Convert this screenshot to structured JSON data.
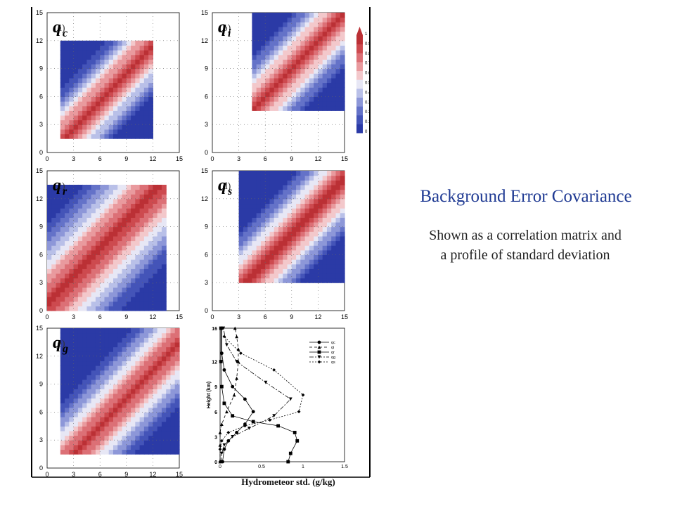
{
  "slide": {
    "title": "Background Error Covariance",
    "subtitle_line1": "Shown as a correlation matrix and",
    "subtitle_line2": "a profile of standard deviation",
    "std_axis_label": "Hydrometeor std. (g/kg)"
  },
  "panels": [
    {
      "var": "q",
      "sub": "c",
      "tag": "(a)"
    },
    {
      "var": "q",
      "sub": "i",
      "tag": "(b)"
    },
    {
      "var": "q",
      "sub": "r",
      "tag": "(c)"
    },
    {
      "var": "q",
      "sub": "s",
      "tag": "(d)"
    },
    {
      "var": "q",
      "sub": "g",
      "tag": "(e)"
    }
  ],
  "colorbar": {
    "ticks": [
      "0",
      "0.1",
      "0.2",
      "0.3",
      "0.4",
      "0.5",
      "0.6",
      "0.7",
      "0.8",
      "0.9",
      "1"
    ],
    "colors": [
      "#2b3aa6",
      "#4454b8",
      "#6472c8",
      "#8d97d8",
      "#b9c0e8",
      "#e7e7f5",
      "#f3c8cb",
      "#e99a9e",
      "#dc7076",
      "#cd4a4f",
      "#bb3035"
    ]
  },
  "chart_data": [
    {
      "type": "heatmap",
      "name": "qc",
      "xlim": [
        0,
        15
      ],
      "ylim": [
        0,
        15
      ],
      "ticks": [
        0,
        3,
        6,
        9,
        12,
        15
      ]
    },
    {
      "type": "heatmap",
      "name": "qi",
      "xlim": [
        0,
        15
      ],
      "ylim": [
        0,
        15
      ],
      "ticks": [
        0,
        3,
        6,
        9,
        12,
        15
      ]
    },
    {
      "type": "heatmap",
      "name": "qr",
      "xlim": [
        0,
        15
      ],
      "ylim": [
        0,
        15
      ],
      "ticks": [
        0,
        3,
        6,
        9,
        12,
        15
      ]
    },
    {
      "type": "heatmap",
      "name": "qs",
      "xlim": [
        0,
        15
      ],
      "ylim": [
        0,
        15
      ],
      "ticks": [
        0,
        3,
        6,
        9,
        12,
        15
      ]
    },
    {
      "type": "heatmap",
      "name": "qg",
      "xlim": [
        0,
        15
      ],
      "ylim": [
        0,
        15
      ],
      "ticks": [
        0,
        3,
        6,
        9,
        12,
        15
      ]
    },
    {
      "type": "line",
      "xlabel": "",
      "ylabel": "Height (km)",
      "xlim": [
        0,
        1.5
      ],
      "ylim": [
        0,
        16
      ],
      "xticks": [
        "0",
        "0.5",
        "1",
        "1.5"
      ],
      "yticks": [
        "0",
        "3",
        "6",
        "9",
        "12",
        "16"
      ],
      "legend": "top-right",
      "series": [
        {
          "name": "qc",
          "marker": "circle",
          "dash": "none",
          "x": [
            0.03,
            0.05,
            0.1,
            0.2,
            0.3,
            0.4,
            0.3,
            0.15,
            0.05,
            0.02,
            0.02
          ],
          "y": [
            0,
            1.5,
            2.5,
            3.5,
            4.5,
            6,
            7.5,
            9,
            11,
            13,
            16
          ]
        },
        {
          "name": "qi",
          "marker": "triangle",
          "dash": "4,3",
          "x": [
            0,
            0,
            0,
            0.02,
            0.08,
            0.17,
            0.2,
            0.22,
            0.22,
            0.2,
            0.18
          ],
          "y": [
            0,
            2,
            3.5,
            4.5,
            6,
            8,
            10,
            12,
            13.5,
            15,
            16
          ]
        },
        {
          "name": "qr",
          "marker": "square",
          "dash": "none",
          "x": [
            0.82,
            0.85,
            0.93,
            0.9,
            0.7,
            0.4,
            0.15,
            0.05,
            0.02,
            0.01,
            0.01
          ],
          "y": [
            0,
            1,
            2.5,
            3.5,
            4.3,
            4.8,
            5.5,
            7,
            9,
            12,
            16
          ]
        },
        {
          "name": "qg",
          "marker": "inverted",
          "dash": "6,2,2,2",
          "x": [
            0.01,
            0.02,
            0.05,
            0.15,
            0.35,
            0.65,
            0.85,
            0.55,
            0.2,
            0.08,
            0.04
          ],
          "y": [
            0,
            1,
            2,
            3,
            4,
            5.5,
            7.5,
            9.5,
            12,
            14,
            16
          ]
        },
        {
          "name": "qs",
          "marker": "diamond",
          "dash": "2,2",
          "x": [
            0,
            0,
            0.02,
            0.1,
            0.3,
            0.6,
            0.95,
            1.0,
            0.65,
            0.25,
            0.05
          ],
          "y": [
            0,
            1.5,
            2.5,
            3.5,
            4.3,
            5,
            6,
            8,
            11,
            13,
            15
          ]
        }
      ]
    }
  ]
}
